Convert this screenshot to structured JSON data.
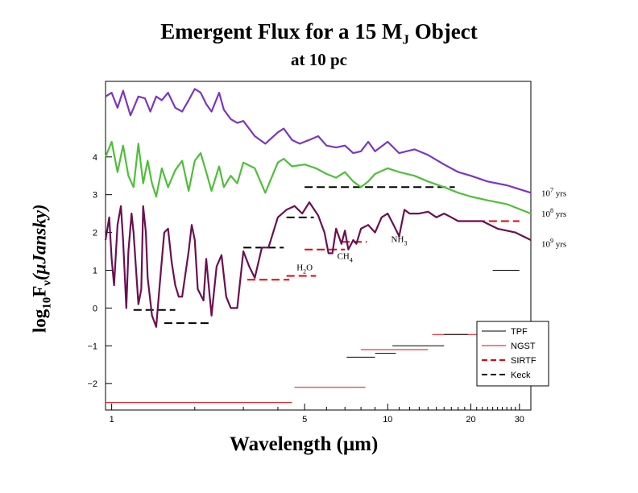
{
  "title": {
    "line1_main": "Emergent Flux for a 15 M",
    "line1_sub": "J",
    "line1_end": " Object",
    "line2": "at 10 pc"
  },
  "axes": {
    "xlabel_main": "Wavelength (",
    "xlabel_mu": "μ",
    "xlabel_end": "m)",
    "ylabel_log": "log",
    "ylabel_log_sub": "10",
    "ylabel_f": "F",
    "ylabel_f_sub": "ν",
    "ylabel_unit": "(μJansky)"
  },
  "chart_data": {
    "type": "line",
    "x_scale": "log",
    "xlim": [
      0.95,
      33
    ],
    "ylim": [
      -2.7,
      6
    ],
    "x_ticks": [
      {
        "value": 1,
        "label": "1"
      },
      {
        "value": 5,
        "label": "5"
      },
      {
        "value": 10,
        "label": "10"
      },
      {
        "value": 20,
        "label": "20"
      },
      {
        "value": 30,
        "label": "30"
      }
    ],
    "y_ticks": [
      {
        "value": -2,
        "label": "−2"
      },
      {
        "value": -1,
        "label": "−1"
      },
      {
        "value": 0,
        "label": "0"
      },
      {
        "value": 1,
        "label": "1"
      },
      {
        "value": 2,
        "label": "2"
      },
      {
        "value": 3,
        "label": "3"
      },
      {
        "value": 4,
        "label": "4"
      }
    ],
    "series": [
      {
        "name": "10^7 yrs",
        "color": "#7b35c4",
        "x": [
          0.95,
          1.0,
          1.05,
          1.1,
          1.17,
          1.25,
          1.32,
          1.38,
          1.45,
          1.52,
          1.6,
          1.7,
          1.8,
          1.9,
          2.0,
          2.05,
          2.1,
          2.2,
          2.3,
          2.45,
          2.55,
          2.7,
          2.85,
          3.0,
          3.3,
          3.6,
          4.0,
          4.2,
          4.5,
          4.8,
          5.2,
          5.6,
          6.0,
          6.5,
          7.0,
          7.5,
          8.0,
          8.5,
          9.0,
          10.0,
          11.0,
          12.5,
          14.0,
          16.0,
          18.0,
          20.0,
          23.0,
          27.0,
          33.0
        ],
        "y": [
          5.6,
          5.7,
          5.3,
          5.75,
          5.1,
          5.6,
          5.55,
          5.2,
          5.6,
          5.5,
          5.7,
          5.3,
          5.2,
          5.5,
          5.8,
          5.75,
          5.7,
          5.4,
          5.2,
          5.7,
          5.25,
          5.0,
          4.9,
          4.95,
          4.55,
          4.35,
          4.65,
          4.75,
          4.45,
          4.35,
          4.45,
          4.55,
          4.3,
          4.25,
          4.3,
          4.1,
          4.15,
          4.4,
          4.15,
          4.4,
          4.1,
          4.2,
          4.05,
          3.8,
          3.6,
          3.5,
          3.35,
          3.25,
          3.05
        ]
      },
      {
        "name": "10^8 yrs",
        "color": "#4fbf3a",
        "x": [
          0.95,
          1.0,
          1.05,
          1.1,
          1.15,
          1.2,
          1.25,
          1.3,
          1.35,
          1.4,
          1.45,
          1.52,
          1.6,
          1.7,
          1.8,
          1.9,
          2.0,
          2.1,
          2.2,
          2.3,
          2.45,
          2.55,
          2.7,
          2.85,
          3.0,
          3.3,
          3.6,
          4.0,
          4.2,
          4.5,
          5.0,
          5.5,
          6.0,
          6.5,
          7.0,
          7.5,
          8.0,
          8.5,
          9.0,
          10.0,
          11.0,
          12.5,
          14.0,
          16.0,
          18.0,
          20.0,
          23.0,
          27.0,
          33.0
        ],
        "y": [
          4.0,
          4.4,
          3.6,
          4.3,
          3.5,
          3.2,
          4.35,
          3.3,
          3.9,
          3.3,
          2.95,
          3.7,
          3.2,
          3.65,
          3.9,
          3.1,
          3.9,
          4.1,
          3.6,
          3.1,
          3.75,
          3.2,
          3.5,
          3.3,
          3.85,
          3.7,
          3.05,
          3.85,
          3.95,
          3.75,
          3.8,
          3.7,
          3.55,
          3.45,
          3.6,
          3.35,
          3.2,
          3.35,
          3.55,
          3.7,
          3.6,
          3.5,
          3.35,
          3.2,
          3.05,
          2.95,
          2.85,
          2.75,
          2.5
        ]
      },
      {
        "name": "10^9 yrs",
        "color": "#6b0f52",
        "x": [
          0.95,
          0.98,
          1.0,
          1.02,
          1.05,
          1.08,
          1.1,
          1.13,
          1.15,
          1.18,
          1.2,
          1.25,
          1.28,
          1.3,
          1.33,
          1.35,
          1.4,
          1.45,
          1.5,
          1.55,
          1.6,
          1.65,
          1.7,
          1.75,
          1.8,
          1.9,
          1.95,
          2.0,
          2.05,
          2.15,
          2.2,
          2.3,
          2.4,
          2.5,
          2.6,
          2.7,
          2.85,
          3.0,
          3.15,
          3.3,
          3.5,
          3.7,
          4.0,
          4.3,
          4.6,
          4.9,
          5.2,
          5.6,
          5.9,
          6.1,
          6.3,
          6.5,
          6.8,
          7.0,
          7.2,
          7.5,
          7.7,
          8.0,
          8.5,
          9.0,
          9.5,
          10.0,
          10.5,
          11.0,
          11.5,
          12.0,
          13.0,
          14.0,
          15.0,
          16.0,
          17.0,
          18.0,
          20.0,
          22.0,
          25.0,
          29.0,
          33.0
        ],
        "y": [
          1.8,
          2.4,
          1.3,
          0.6,
          2.2,
          2.7,
          1.8,
          0.0,
          1.5,
          2.5,
          2.0,
          0.1,
          0.5,
          2.7,
          2.0,
          0.8,
          -0.2,
          -0.5,
          0.8,
          2.0,
          2.1,
          1.2,
          0.6,
          0.3,
          0.3,
          1.5,
          2.2,
          1.8,
          0.5,
          0.2,
          1.3,
          -0.2,
          1.1,
          1.4,
          0.3,
          0.0,
          0.0,
          1.5,
          1.1,
          0.8,
          1.6,
          1.6,
          2.4,
          2.6,
          2.7,
          2.5,
          2.8,
          2.45,
          2.0,
          1.45,
          1.45,
          2.1,
          1.7,
          2.05,
          1.55,
          1.8,
          1.7,
          2.1,
          2.2,
          2.0,
          2.4,
          2.5,
          2.2,
          1.9,
          2.6,
          2.5,
          2.5,
          2.55,
          2.4,
          2.5,
          2.4,
          2.3,
          2.3,
          2.3,
          2.1,
          2.0,
          1.8
        ]
      }
    ],
    "series_labels": [
      {
        "main": "10",
        "sup": "7",
        "suffix": " yrs",
        "y": 3.05
      },
      {
        "main": "10",
        "sup": "8",
        "suffix": " yrs",
        "y": 2.5
      },
      {
        "main": "10",
        "sup": "9",
        "suffix": " yrs",
        "y": 1.7
      }
    ],
    "annotations": [
      {
        "main": "H",
        "sub": "2",
        "end": "O",
        "x": 5.0,
        "y": 1.0
      },
      {
        "main": "CH",
        "sub": "4",
        "end": "",
        "x": 7.0,
        "y": 1.3
      },
      {
        "main": "NH",
        "sub": "3",
        "end": "",
        "x": 11.0,
        "y": 1.75
      }
    ],
    "sensitivity_segments": [
      {
        "instrument": "Keck",
        "x1": 1.2,
        "x2": 1.7,
        "y": -0.05
      },
      {
        "instrument": "Keck",
        "x1": 1.55,
        "x2": 2.3,
        "y": -0.4
      },
      {
        "instrument": "Keck",
        "x1": 3.0,
        "x2": 4.2,
        "y": 1.6
      },
      {
        "instrument": "Keck",
        "x1": 4.3,
        "x2": 5.4,
        "y": 2.4
      },
      {
        "instrument": "Keck",
        "x1": 5.0,
        "x2": 17.5,
        "y": 3.2
      },
      {
        "instrument": "SIRTF",
        "x1": 3.1,
        "x2": 4.4,
        "y": 0.75
      },
      {
        "instrument": "SIRTF",
        "x1": 4.3,
        "x2": 5.5,
        "y": 0.85
      },
      {
        "instrument": "SIRTF",
        "x1": 5.0,
        "x2": 7.0,
        "y": 1.55
      },
      {
        "instrument": "SIRTF",
        "x1": 6.8,
        "x2": 8.4,
        "y": 1.75
      },
      {
        "instrument": "SIRTF",
        "x1": 19.0,
        "x2": 30.0,
        "y": 2.3
      },
      {
        "instrument": "NGST",
        "x1": 0.95,
        "x2": 4.5,
        "y": -2.5
      },
      {
        "instrument": "NGST",
        "x1": 4.6,
        "x2": 8.3,
        "y": -2.1
      },
      {
        "instrument": "NGST",
        "x1": 8.0,
        "x2": 14.0,
        "y": -1.1
      },
      {
        "instrument": "NGST",
        "x1": 14.5,
        "x2": 24.5,
        "y": -0.7
      },
      {
        "instrument": "TPF",
        "x1": 7.1,
        "x2": 9.0,
        "y": -1.3
      },
      {
        "instrument": "TPF",
        "x1": 9.0,
        "x2": 10.7,
        "y": -1.2
      },
      {
        "instrument": "TPF",
        "x1": 10.4,
        "x2": 16.0,
        "y": -1.0
      },
      {
        "instrument": "TPF",
        "x1": 16.0,
        "x2": 19.5,
        "y": -0.7
      },
      {
        "instrument": "TPF",
        "x1": 24.0,
        "x2": 30.0,
        "y": 1.0
      }
    ],
    "legend": {
      "position": "lower-right",
      "entries": [
        {
          "label": "TPF",
          "color": "#000000",
          "style": "solid-thin"
        },
        {
          "label": "NGST",
          "color": "#e8000b",
          "style": "solid-thin"
        },
        {
          "label": "SIRTF",
          "color": "#e8000b",
          "style": "dashed"
        },
        {
          "label": "Keck",
          "color": "#000000",
          "style": "dashed"
        }
      ]
    }
  }
}
